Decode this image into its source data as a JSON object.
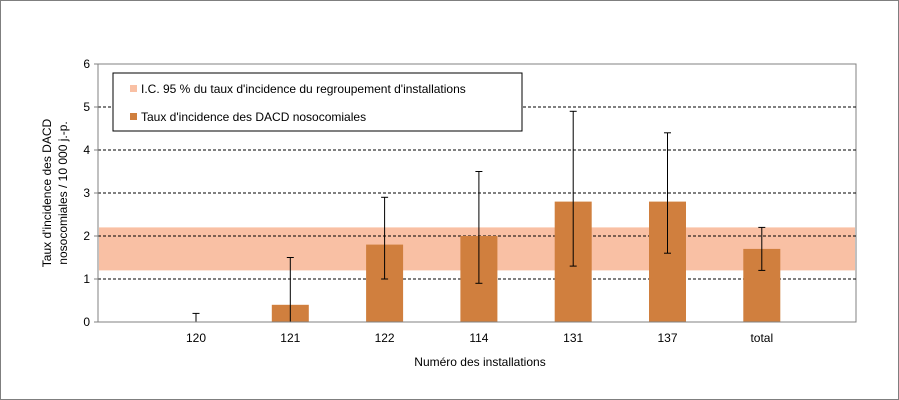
{
  "chart_data": {
    "type": "bar",
    "categories": [
      "120",
      "121",
      "122",
      "114",
      "131",
      "137",
      "total"
    ],
    "values": [
      0,
      0.4,
      1.8,
      2.0,
      2.8,
      2.8,
      1.7
    ],
    "error_low": [
      0,
      0,
      1.0,
      0.9,
      1.3,
      1.6,
      1.2
    ],
    "error_high": [
      0.2,
      1.5,
      2.9,
      3.5,
      4.9,
      4.4,
      2.2
    ],
    "ci_band": [
      1.2,
      2.2
    ],
    "xlabel": "Numéro des installations",
    "ylabel_line1": "Taux d'incidence des DACD",
    "ylabel_line2": "nosocomiales / 10 000 j.-p.",
    "ylim": [
      0,
      6
    ],
    "yticks": [
      0,
      1,
      2,
      3,
      4,
      5,
      6
    ],
    "grid": "dashed horizontal",
    "legend_position": "top-left",
    "legend": [
      "I.C. 95 % du taux d'incidence du regroupement d'installations",
      "Taux d'incidence des DACD nosocomiales"
    ],
    "colors": {
      "bar": "#d07f3e",
      "band": "#f9c0a4",
      "grid": "#000000",
      "error_bar": "#000000"
    }
  }
}
